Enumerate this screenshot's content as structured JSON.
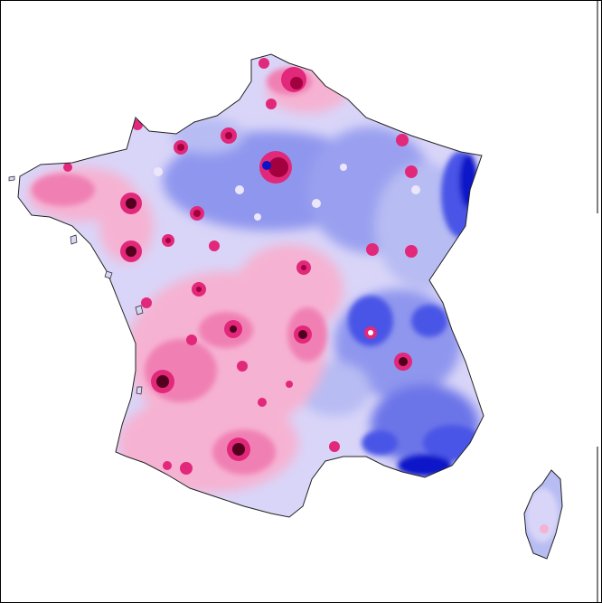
{
  "map": {
    "subject": "France",
    "regions": [
      "mainland-france",
      "corsica"
    ],
    "legend": null,
    "palette": {
      "background": "#ffffff",
      "frame": "#000000",
      "coast": "#222222",
      "deep_blue": "#0a14c8",
      "blue": "#4a55e6",
      "mid_blue": "#8f96ee",
      "light_blue": "#b7bcf3",
      "lavender": "#d9d5f8",
      "light_pink": "#f6b2d2",
      "pink": "#f080b4",
      "magenta": "#e2287a",
      "crimson": "#a3003f",
      "dark_crimson": "#52001d"
    }
  }
}
